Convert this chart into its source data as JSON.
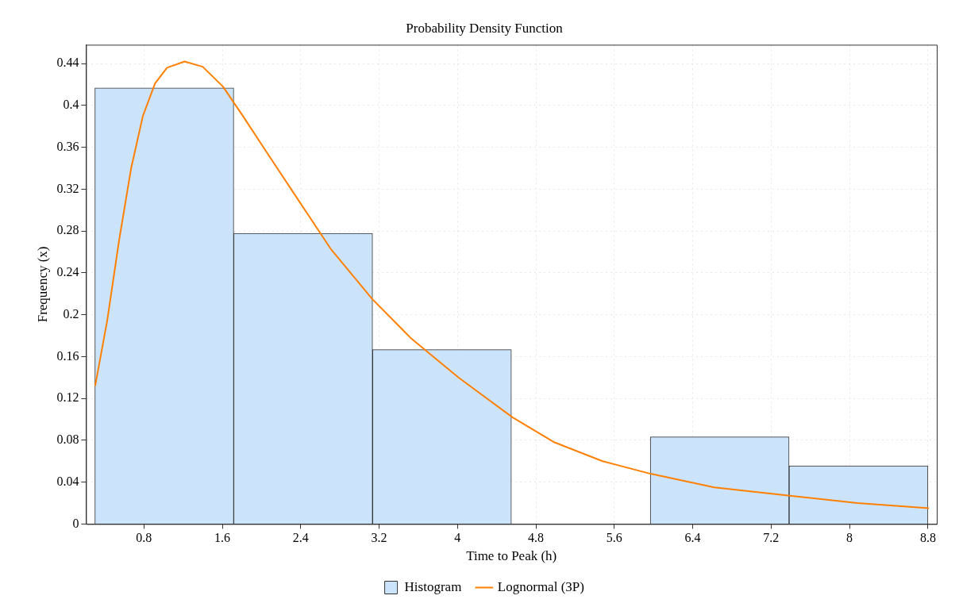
{
  "chart_data": {
    "type": "histogram",
    "title": "Probability Density Function",
    "xlabel": "Time to Peak (h)",
    "ylabel": "Frequency (x)",
    "bins": [
      0.3,
      1.7167,
      3.1333,
      4.55,
      5.9667,
      7.3833,
      8.8
    ],
    "series": [
      {
        "name": "Histogram",
        "color": "#cce4fb",
        "values": [
          0.4167,
          0.2778,
          0.1667,
          0,
          0.0833,
          0.0556
        ]
      },
      {
        "name": "Lognormal (3P)",
        "type": "line",
        "color": "#ff8000",
        "x": [
          0.303,
          0.425,
          0.547,
          0.67,
          0.79,
          0.914,
          1.036,
          1.215,
          1.4,
          1.607,
          1.81,
          2.055,
          2.38,
          2.706,
          3.13,
          3.52,
          4.01,
          4.56,
          4.99,
          5.48,
          5.97,
          6.62,
          7.39,
          8.08,
          8.81
        ],
        "values": [
          0.132,
          0.194,
          0.271,
          0.34,
          0.39,
          0.421,
          0.436,
          0.442,
          0.437,
          0.418,
          0.39,
          0.355,
          0.309,
          0.263,
          0.215,
          0.178,
          0.14,
          0.102,
          0.078,
          0.06,
          0.048,
          0.035,
          0.027,
          0.02,
          0.015
        ]
      }
    ],
    "xlim": [
      0.21,
      8.89
    ],
    "ylim": [
      0,
      0.458
    ],
    "xticks": [
      0.8,
      1.6,
      2.4,
      3.2,
      4,
      4.8,
      5.6,
      6.4,
      7.2,
      8,
      8.8
    ],
    "yticks": [
      0,
      0.04,
      0.08,
      0.12,
      0.16,
      0.2,
      0.24,
      0.28,
      0.32,
      0.36,
      0.4,
      0.44
    ],
    "grid": true,
    "legend": "bottom",
    "marker": "none",
    "line_style": "solid"
  }
}
